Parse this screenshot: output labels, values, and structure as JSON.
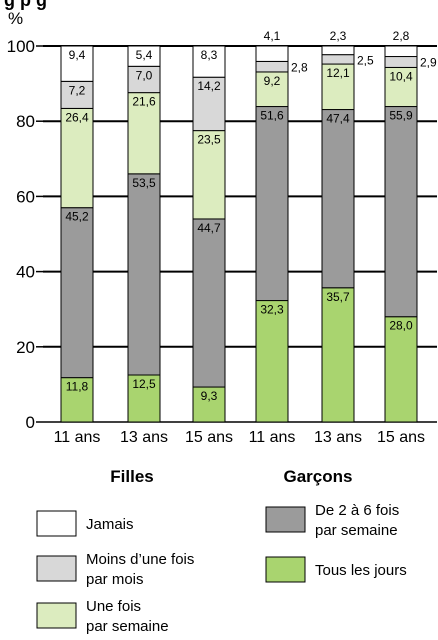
{
  "chart_data": {
    "type": "bar",
    "stacked": true,
    "title_fragment": "g p   g",
    "ylabel": "%",
    "ylim": [
      0,
      100
    ],
    "yticks": [
      "0",
      "20",
      "40",
      "60",
      "80",
      "100"
    ],
    "categories": [
      "11 ans",
      "13 ans",
      "15 ans",
      "11 ans",
      "13 ans",
      "15 ans"
    ],
    "groups": [
      {
        "name": "Filles",
        "categories": [
          0,
          1,
          2
        ]
      },
      {
        "name": "Garçons",
        "categories": [
          3,
          4,
          5
        ]
      }
    ],
    "series": [
      {
        "name": "Tous les jours",
        "color": "#a9d46f",
        "values": [
          11.8,
          12.5,
          9.3,
          32.3,
          35.7,
          28.0
        ],
        "labels": [
          "11,8",
          "12,5",
          "9,3",
          "32,3",
          "35,7",
          "28,0"
        ]
      },
      {
        "name": "De 2 à 6 fois par semaine",
        "color": "#9b9b9b",
        "values": [
          45.2,
          53.5,
          44.7,
          51.6,
          47.4,
          55.9
        ],
        "labels": [
          "45,2",
          "53,5",
          "44,7",
          "51,6",
          "47,4",
          "55,9"
        ]
      },
      {
        "name": "Une fois par semaine",
        "color": "#dcecbf",
        "values": [
          26.4,
          21.6,
          23.5,
          9.2,
          12.1,
          10.4
        ],
        "labels": [
          "26,4",
          "21,6",
          "23,5",
          "9,2",
          "12,1",
          "10,4"
        ]
      },
      {
        "name": "Moins d'une fois par mois",
        "color": "#d8d8d8",
        "values": [
          7.2,
          7.0,
          14.2,
          2.8,
          2.5,
          2.9
        ],
        "labels": [
          "7,2",
          "7,0",
          "14,2",
          "2,8",
          "2,5",
          "2,9"
        ]
      },
      {
        "name": "Jamais",
        "color": "#ffffff",
        "values": [
          9.4,
          5.4,
          8.3,
          4.1,
          2.3,
          2.8
        ],
        "labels": [
          "9,4",
          "5,4",
          "8,3",
          "4,1",
          "2,3",
          "2,8"
        ]
      }
    ],
    "legend": {
      "placement": "bottom",
      "items": [
        {
          "name": "Jamais",
          "line1": "Jamais",
          "line2": "",
          "color": "#ffffff"
        },
        {
          "name": "Moins d'une fois par mois",
          "line1": "Moins d’une fois",
          "line2": "par mois",
          "color": "#d8d8d8"
        },
        {
          "name": "Une fois par semaine",
          "line1": "Une fois",
          "line2": "par semaine",
          "color": "#dcecbf"
        },
        {
          "name": "De 2 à 6 fois par semaine",
          "line1": "De 2 à 6 fois",
          "line2": "par semaine",
          "color": "#9b9b9b"
        },
        {
          "name": "Tous les jours",
          "line1": "Tous les jours",
          "line2": "",
          "color": "#a9d46f"
        }
      ]
    },
    "grid": true
  }
}
